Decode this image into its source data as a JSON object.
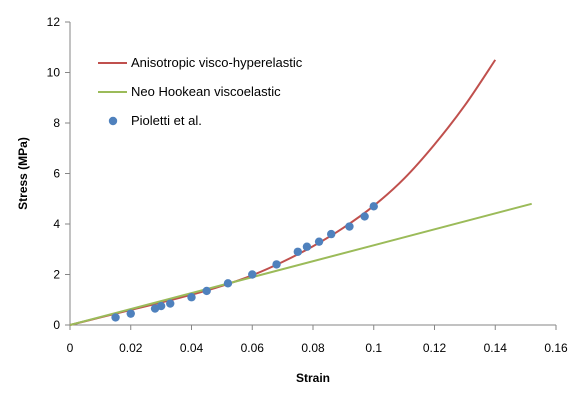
{
  "chart_data": {
    "type": "scatter",
    "title": "",
    "xlabel": "Strain",
    "ylabel": "Stress (MPa)",
    "xlim": [
      0,
      0.16
    ],
    "ylim": [
      0,
      12
    ],
    "x_ticks": [
      "0",
      "0.02",
      "0.04",
      "0.06",
      "0.08",
      "0.1",
      "0.12",
      "0.14",
      "0.16"
    ],
    "y_ticks": [
      "0",
      "2",
      "4",
      "6",
      "8",
      "10",
      "12"
    ],
    "grid": false,
    "legend_position": "top-left",
    "series": [
      {
        "name": "Anisotropic visco-hyperelastic",
        "kind": "line",
        "color": "#c0504d",
        "x": [
          0,
          0.01,
          0.02,
          0.03,
          0.04,
          0.05,
          0.06,
          0.07,
          0.08,
          0.09,
          0.1,
          0.11,
          0.12,
          0.13,
          0.14
        ],
        "y": [
          0,
          0.3,
          0.6,
          0.89,
          1.2,
          1.55,
          1.97,
          2.5,
          3.12,
          3.85,
          4.72,
          5.8,
          7.15,
          8.7,
          10.5
        ]
      },
      {
        "name": "Neo Hookean viscoelastic",
        "kind": "line",
        "color": "#9bbb59",
        "x": [
          0,
          0.152
        ],
        "y": [
          0,
          4.8
        ]
      },
      {
        "name": "Pioletti et al.",
        "kind": "markers",
        "color": "#4f81bd",
        "x": [
          0.015,
          0.02,
          0.028,
          0.03,
          0.033,
          0.04,
          0.045,
          0.052,
          0.06,
          0.068,
          0.075,
          0.078,
          0.082,
          0.086,
          0.092,
          0.097,
          0.1
        ],
        "y": [
          0.3,
          0.45,
          0.65,
          0.75,
          0.85,
          1.1,
          1.35,
          1.65,
          2.0,
          2.4,
          2.9,
          3.1,
          3.3,
          3.6,
          3.9,
          4.3,
          4.7
        ]
      }
    ]
  }
}
